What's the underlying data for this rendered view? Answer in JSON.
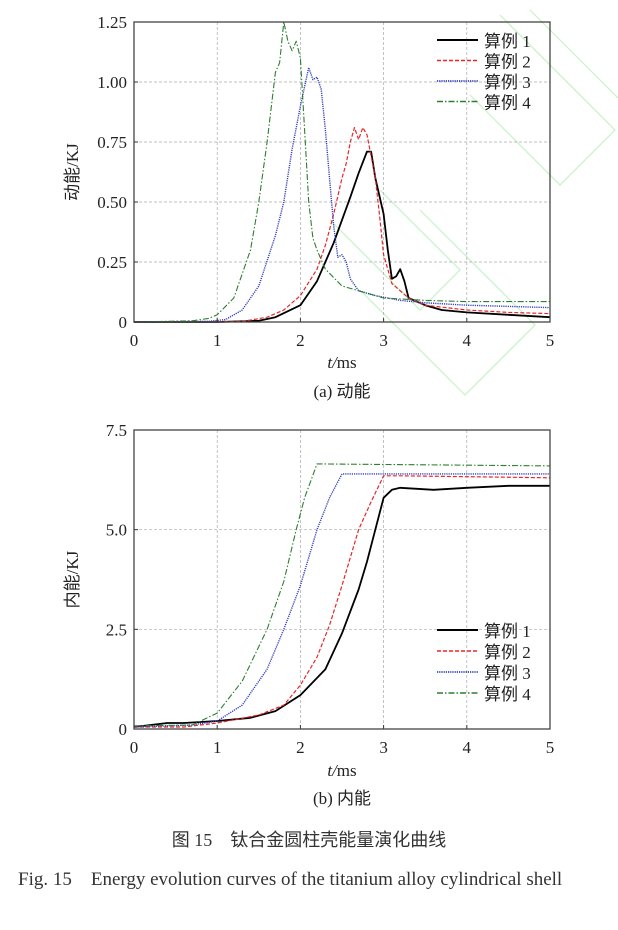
{
  "chart_data": [
    {
      "type": "line",
      "subcaption": "(a) 动能",
      "xlabel": "t/ms",
      "ylabel": "动能/KJ",
      "xlim": [
        0,
        5
      ],
      "ylim": [
        0,
        1.25
      ],
      "xticks": [
        "0",
        "1",
        "2",
        "3",
        "4",
        "5"
      ],
      "yticks": [
        "0",
        "0.25",
        "0.50",
        "0.75",
        "1.00",
        "1.25"
      ],
      "grid": true,
      "legend_position": "top-right",
      "series": [
        {
          "name": "算例 1",
          "color": "#000000",
          "style": "solid",
          "x": [
            0,
            1,
            1.5,
            1.7,
            2,
            2.2,
            2.4,
            2.6,
            2.7,
            2.8,
            2.85,
            2.9,
            3.0,
            3.05,
            3.1,
            3.15,
            3.2,
            3.25,
            3.3,
            3.5,
            3.7,
            4,
            4.5,
            5
          ],
          "y": [
            0,
            0,
            0.005,
            0.02,
            0.07,
            0.17,
            0.33,
            0.52,
            0.62,
            0.71,
            0.71,
            0.6,
            0.45,
            0.3,
            0.18,
            0.19,
            0.22,
            0.17,
            0.1,
            0.07,
            0.05,
            0.04,
            0.03,
            0.02
          ]
        },
        {
          "name": "算例 2",
          "color": "#e8262a",
          "style": "dashed",
          "x": [
            0,
            1.3,
            1.6,
            1.8,
            2,
            2.2,
            2.3,
            2.4,
            2.5,
            2.55,
            2.6,
            2.65,
            2.7,
            2.75,
            2.8,
            2.9,
            2.95,
            3.0,
            3.05,
            3.1,
            3.2,
            3.3,
            3.5,
            4,
            4.5,
            5
          ],
          "y": [
            0,
            0.002,
            0.02,
            0.05,
            0.11,
            0.22,
            0.32,
            0.45,
            0.6,
            0.66,
            0.75,
            0.81,
            0.76,
            0.81,
            0.78,
            0.6,
            0.45,
            0.28,
            0.22,
            0.16,
            0.13,
            0.1,
            0.07,
            0.05,
            0.04,
            0.035
          ]
        },
        {
          "name": "算例 3",
          "color": "#3340b8",
          "style": "dotted",
          "x": [
            0,
            0.9,
            1.1,
            1.3,
            1.5,
            1.7,
            1.8,
            1.9,
            2.0,
            2.1,
            2.15,
            2.2,
            2.25,
            2.3,
            2.35,
            2.4,
            2.45,
            2.5,
            2.55,
            2.6,
            2.7,
            2.9,
            3.2,
            3.5,
            4,
            4.5,
            5
          ],
          "y": [
            0,
            0.003,
            0.01,
            0.05,
            0.15,
            0.36,
            0.5,
            0.72,
            0.9,
            1.06,
            1.01,
            1.02,
            0.97,
            0.8,
            0.6,
            0.4,
            0.27,
            0.28,
            0.25,
            0.18,
            0.13,
            0.11,
            0.09,
            0.08,
            0.07,
            0.065,
            0.06
          ]
        },
        {
          "name": "算例 4",
          "color": "#2e7d32",
          "style": "dashdot",
          "x": [
            0,
            0.7,
            0.9,
            1.0,
            1.2,
            1.4,
            1.5,
            1.6,
            1.7,
            1.75,
            1.8,
            1.85,
            1.9,
            1.95,
            2.0,
            2.05,
            2.1,
            2.15,
            2.2,
            2.3,
            2.5,
            2.8,
            3.0,
            3.5,
            4,
            5
          ],
          "y": [
            0,
            0.005,
            0.015,
            0.03,
            0.1,
            0.3,
            0.5,
            0.75,
            1.04,
            1.08,
            1.25,
            1.17,
            1.13,
            1.17,
            1.1,
            0.8,
            0.5,
            0.35,
            0.3,
            0.22,
            0.15,
            0.12,
            0.1,
            0.09,
            0.085,
            0.085
          ]
        }
      ]
    },
    {
      "type": "line",
      "subcaption": "(b) 内能",
      "xlabel": "t/ms",
      "ylabel": "内能/KJ",
      "xlim": [
        0,
        5
      ],
      "ylim": [
        0,
        7.5
      ],
      "xticks": [
        "0",
        "1",
        "2",
        "3",
        "4",
        "5"
      ],
      "yticks": [
        "0",
        "2.5",
        "5.0",
        "7.5"
      ],
      "grid": true,
      "legend_position": "bottom-right",
      "series": [
        {
          "name": "算例 1",
          "color": "#000000",
          "style": "solid",
          "x": [
            0,
            0.4,
            0.6,
            1,
            1.4,
            1.7,
            2,
            2.3,
            2.5,
            2.7,
            2.8,
            2.9,
            3.0,
            3.1,
            3.2,
            3.6,
            4,
            4.5,
            5
          ],
          "y": [
            0.05,
            0.15,
            0.15,
            0.2,
            0.28,
            0.45,
            0.85,
            1.5,
            2.4,
            3.5,
            4.2,
            5.0,
            5.8,
            6.0,
            6.05,
            6.0,
            6.05,
            6.1,
            6.1
          ]
        },
        {
          "name": "算例 2",
          "color": "#e8262a",
          "style": "dashed",
          "x": [
            0,
            0.6,
            1,
            1.5,
            1.8,
            2,
            2.2,
            2.35,
            2.5,
            2.7,
            2.85,
            3.0,
            3.2,
            5
          ],
          "y": [
            0.05,
            0.05,
            0.15,
            0.35,
            0.6,
            1.1,
            1.8,
            2.6,
            3.6,
            5.0,
            5.7,
            6.35,
            6.35,
            6.3
          ]
        },
        {
          "name": "算例 3",
          "color": "#3340b8",
          "style": "dotted",
          "x": [
            0,
            0.7,
            1,
            1.3,
            1.6,
            1.8,
            2.0,
            2.2,
            2.35,
            2.5,
            5
          ],
          "y": [
            0.05,
            0.1,
            0.2,
            0.6,
            1.5,
            2.5,
            3.6,
            5.0,
            5.8,
            6.4,
            6.4
          ]
        },
        {
          "name": "算例 4",
          "color": "#2e7d32",
          "style": "dashdot",
          "x": [
            0,
            0.7,
            1,
            1.3,
            1.6,
            1.8,
            1.95,
            2.05,
            2.2,
            5
          ],
          "y": [
            0.08,
            0.1,
            0.4,
            1.2,
            2.5,
            3.7,
            5.0,
            5.8,
            6.65,
            6.6
          ]
        }
      ]
    }
  ],
  "caption": {
    "zh": "图 15　钛合金圆柱壳能量演化曲线",
    "en": "Fig. 15　Energy evolution curves of the titanium alloy cylindrical shell"
  }
}
